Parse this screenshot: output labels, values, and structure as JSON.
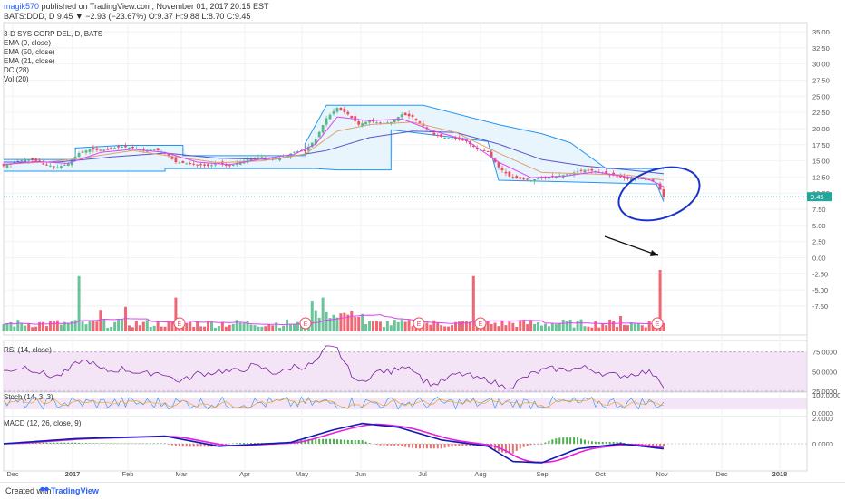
{
  "header": {
    "author": "magik570",
    "published": "published on TradingView.com, November 01, 2017 20:15 EST",
    "ticker_line": "BATS:DDD, D  9.45 ▼ −2.93 (−23.67%) O:9.37 H:9.88 L:8.70 C:9.45"
  },
  "legend": {
    "title": "3-D SYS CORP DEL, D, BATS",
    "items": [
      "EMA (9, close)",
      "EMA (50, close)",
      "EMA (21, close)",
      "DC (28)",
      "Vol (20)"
    ]
  },
  "panes": {
    "rsi_label": "RSI (14, close)",
    "stoch_label": "Stoch (14, 3, 3)",
    "macd_label": "MACD (12, 26, close, 9)"
  },
  "footer": {
    "created": "Created with",
    "brand": "TradingView"
  },
  "colors": {
    "up": "#53b987",
    "down": "#eb4d5c",
    "dc_line": "#2196f3",
    "dc_fill": "#e3f2fd",
    "ema9": "#e040fb",
    "ema21": "#e0a070",
    "ema50": "#5b55c9",
    "ellipse": "#1a33c8",
    "rsi_line": "#7b1fa2",
    "rsi_band": "#f3e5f5",
    "macd": "#0d1bb0",
    "signal": "#e91ee0",
    "hist": "#4caf50",
    "last_price_tag": "#26a69a"
  },
  "chart_data": {
    "type": "candlestick",
    "price_axis": {
      "ticks": [
        "35.00",
        "32.50",
        "30.00",
        "27.50",
        "25.00",
        "22.50",
        "20.00",
        "17.50",
        "15.00",
        "12.50",
        "10.00",
        "7.50",
        "5.00",
        "2.50",
        "0.00",
        "-2.50",
        "-5.00",
        "-7.50"
      ],
      "last_price": "9.45"
    },
    "time_axis": [
      "Dec",
      "2017",
      "Feb",
      "Mar",
      "Apr",
      "May",
      "Jun",
      "Jul",
      "Aug",
      "Sep",
      "Oct",
      "Nov",
      "Dec",
      "2018"
    ],
    "close_series": [
      [
        0,
        14.2
      ],
      [
        3,
        14.8
      ],
      [
        6,
        15.2
      ],
      [
        9,
        15.0
      ],
      [
        12,
        14.4
      ],
      [
        15,
        14.0
      ],
      [
        18,
        14.6
      ],
      [
        21,
        16.2
      ],
      [
        24,
        16.8
      ],
      [
        27,
        16.6
      ],
      [
        30,
        16.9
      ],
      [
        33,
        17.2
      ],
      [
        36,
        17.0
      ],
      [
        39,
        16.6
      ],
      [
        42,
        16.8
      ],
      [
        45,
        16.2
      ],
      [
        48,
        14.8
      ],
      [
        51,
        14.6
      ],
      [
        54,
        14.4
      ],
      [
        57,
        14.2
      ],
      [
        60,
        14.6
      ],
      [
        63,
        14.2
      ],
      [
        66,
        14.8
      ],
      [
        69,
        15.4
      ],
      [
        72,
        15.6
      ],
      [
        75,
        15.2
      ],
      [
        78,
        15.6
      ],
      [
        81,
        16.4
      ],
      [
        84,
        16.6
      ],
      [
        87,
        18.4
      ],
      [
        90,
        21.6
      ],
      [
        93,
        23.2
      ],
      [
        96,
        22.2
      ],
      [
        99,
        20.6
      ],
      [
        102,
        21.2
      ],
      [
        105,
        20.8
      ],
      [
        108,
        21.0
      ],
      [
        111,
        22.2
      ],
      [
        114,
        21.8
      ],
      [
        117,
        20.4
      ],
      [
        120,
        19.0
      ],
      [
        123,
        18.6
      ],
      [
        126,
        18.4
      ],
      [
        129,
        18.0
      ],
      [
        132,
        16.8
      ],
      [
        135,
        16.4
      ],
      [
        138,
        14.0
      ],
      [
        141,
        12.6
      ],
      [
        144,
        12.2
      ],
      [
        147,
        12.0
      ],
      [
        150,
        12.4
      ],
      [
        153,
        12.6
      ],
      [
        156,
        12.8
      ],
      [
        159,
        13.2
      ],
      [
        162,
        13.6
      ],
      [
        165,
        13.4
      ],
      [
        168,
        13.0
      ],
      [
        171,
        12.6
      ],
      [
        174,
        12.2
      ],
      [
        177,
        12.4
      ],
      [
        180,
        12.0
      ],
      [
        182,
        11.6
      ],
      [
        184,
        9.45
      ]
    ],
    "ema9_series": [
      [
        0,
        14.4
      ],
      [
        9,
        14.9
      ],
      [
        18,
        14.6
      ],
      [
        27,
        16.3
      ],
      [
        36,
        16.8
      ],
      [
        45,
        16.3
      ],
      [
        54,
        14.8
      ],
      [
        63,
        14.4
      ],
      [
        72,
        15.3
      ],
      [
        81,
        16.0
      ],
      [
        87,
        17.6
      ],
      [
        93,
        21.8
      ],
      [
        102,
        21.2
      ],
      [
        111,
        21.5
      ],
      [
        120,
        19.6
      ],
      [
        129,
        18.2
      ],
      [
        138,
        14.8
      ],
      [
        147,
        12.4
      ],
      [
        156,
        12.6
      ],
      [
        165,
        13.3
      ],
      [
        174,
        12.5
      ],
      [
        180,
        12.1
      ],
      [
        184,
        11.0
      ]
    ],
    "ema21_series": [
      [
        0,
        14.5
      ],
      [
        12,
        14.8
      ],
      [
        24,
        15.6
      ],
      [
        36,
        16.6
      ],
      [
        48,
        15.6
      ],
      [
        60,
        14.7
      ],
      [
        72,
        15.0
      ],
      [
        84,
        16.0
      ],
      [
        93,
        19.6
      ],
      [
        102,
        20.6
      ],
      [
        114,
        21.0
      ],
      [
        126,
        19.4
      ],
      [
        138,
        16.2
      ],
      [
        150,
        13.2
      ],
      [
        162,
        13.0
      ],
      [
        174,
        12.8
      ],
      [
        184,
        12.0
      ]
    ],
    "ema50_series": [
      [
        0,
        14.8
      ],
      [
        15,
        14.8
      ],
      [
        30,
        15.6
      ],
      [
        45,
        16.2
      ],
      [
        60,
        15.4
      ],
      [
        75,
        15.2
      ],
      [
        90,
        16.6
      ],
      [
        102,
        18.6
      ],
      [
        114,
        19.6
      ],
      [
        126,
        19.4
      ],
      [
        138,
        17.6
      ],
      [
        150,
        15.2
      ],
      [
        162,
        14.2
      ],
      [
        174,
        13.6
      ],
      [
        184,
        13.0
      ]
    ],
    "dc_upper": [
      [
        0,
        15.2
      ],
      [
        20,
        15.2
      ],
      [
        20,
        17.0
      ],
      [
        33,
        17.4
      ],
      [
        50,
        17.4
      ],
      [
        50,
        15.8
      ],
      [
        84,
        15.8
      ],
      [
        84,
        17.6
      ],
      [
        90,
        23.6
      ],
      [
        117,
        23.6
      ],
      [
        138,
        20.6
      ],
      [
        150,
        19.2
      ],
      [
        158,
        17.8
      ],
      [
        168,
        13.8
      ],
      [
        184,
        13.8
      ]
    ],
    "dc_lower": [
      [
        0,
        13.4
      ],
      [
        45,
        13.4
      ],
      [
        45,
        13.8
      ],
      [
        87,
        13.8
      ],
      [
        93,
        13.6
      ],
      [
        108,
        13.6
      ],
      [
        108,
        19.8
      ],
      [
        135,
        18.0
      ],
      [
        138,
        12.0
      ],
      [
        168,
        11.6
      ],
      [
        182,
        11.4
      ],
      [
        184,
        8.7
      ]
    ],
    "volume_pattern": [
      0.15,
      0.1,
      0.2,
      0.12,
      0.25,
      0.9,
      0.3,
      0.15,
      0.1,
      0.2
    ],
    "volume_spikes": [
      [
        21,
        0.9
      ],
      [
        27,
        0.35
      ],
      [
        34,
        0.4
      ],
      [
        48,
        0.55
      ],
      [
        86,
        0.5
      ],
      [
        89,
        0.55
      ],
      [
        131,
        0.9
      ],
      [
        172,
        0.25
      ],
      [
        183,
        1.0
      ]
    ],
    "earnings_markers": [
      "E",
      "E",
      "E",
      "E",
      "E"
    ],
    "rsi_ticks": [
      "75.0000",
      "50.0000",
      "25.0000"
    ],
    "stoch_ticks": [
      "100.0000",
      "0.0000"
    ],
    "macd_ticks": [
      "2.0000",
      "0.0000"
    ],
    "annotations": [
      "ellipse around latest bars",
      "arrow pointing to final volume spike"
    ]
  }
}
